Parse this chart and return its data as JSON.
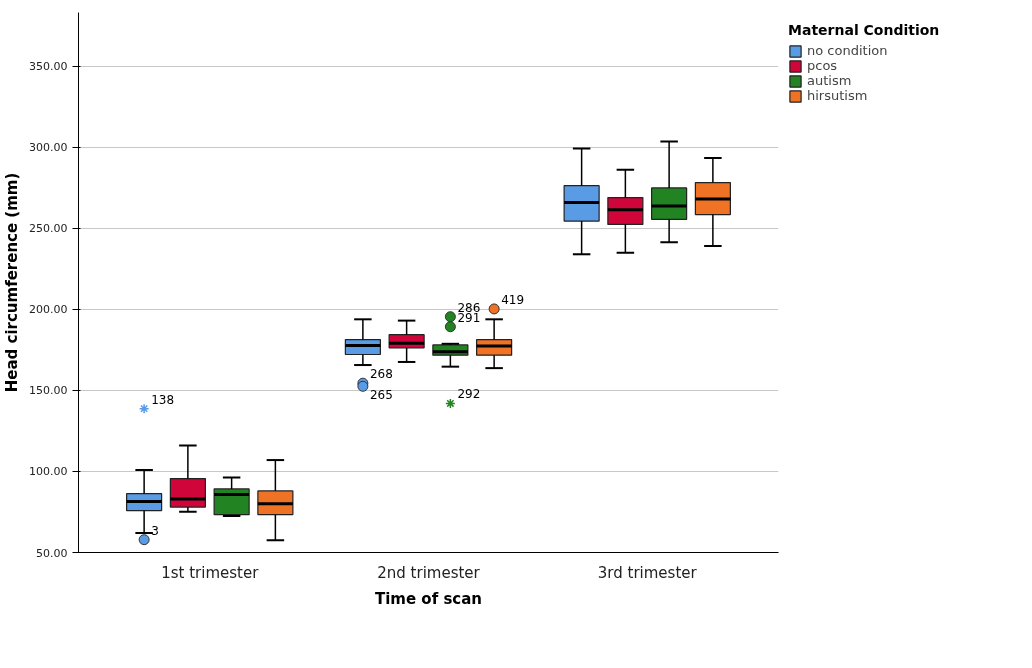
{
  "chart_data": {
    "type": "box",
    "xlabel": "Time of scan",
    "ylabel": "Head circumference (mm)",
    "legend_title": "Maternal Condition",
    "legend": "top right",
    "grid": "y",
    "categories": [
      "1st trimester",
      "2nd trimester",
      "3rd trimester"
    ],
    "ylim": [
      50,
      383
    ],
    "yticks": [
      {
        "value": 50,
        "label": "50.00"
      },
      {
        "value": 100,
        "label": "100.00"
      },
      {
        "value": 150,
        "label": "150.00"
      },
      {
        "value": 200,
        "label": "200.00"
      },
      {
        "value": 250,
        "label": "250.00"
      },
      {
        "value": 300,
        "label": "300.00"
      },
      {
        "value": 350,
        "label": "350.00"
      }
    ],
    "series": [
      {
        "name": "no condition",
        "color": "#5a9be6",
        "boxes": [
          {
            "low": 62,
            "q1": 75.8,
            "median": 81.5,
            "q3": 86.3,
            "high": 100.8,
            "outliers": [
              57.9,
              138.7
            ]
          },
          {
            "low": 165.6,
            "q1": 172.1,
            "median": 177.7,
            "q3": 181.3,
            "high": 193.8,
            "outliers": [
              154.4,
              152.5
            ]
          },
          {
            "low": 233.9,
            "q1": 254.4,
            "median": 265.8,
            "q3": 276.2,
            "high": 299.2
          }
        ]
      },
      {
        "name": "pcos",
        "color": "#d0063a",
        "boxes": [
          {
            "low": 75.2,
            "q1": 78,
            "median": 83,
            "q3": 95.6,
            "high": 116
          },
          {
            "low": 167.5,
            "q1": 176.2,
            "median": 179.1,
            "q3": 184.3,
            "high": 193
          },
          {
            "low": 234.8,
            "q1": 252.3,
            "median": 261.3,
            "q3": 268.9,
            "high": 286
          }
        ]
      },
      {
        "name": "autism",
        "color": "#228322",
        "boxes": [
          {
            "low": 72.5,
            "q1": 73.3,
            "median": 85.8,
            "q3": 89.2,
            "high": 96.2
          },
          {
            "low": 164.6,
            "q1": 171.7,
            "median": 173.8,
            "q3": 178,
            "high": 178.7,
            "outliers": [
              195.4,
              189.2,
              141.9
            ]
          },
          {
            "low": 241.3,
            "q1": 255.4,
            "median": 263.7,
            "q3": 274.8,
            "high": 303.5
          }
        ]
      },
      {
        "name": "hirsutism",
        "color": "#f07224",
        "boxes": [
          {
            "low": 57.5,
            "q1": 73.3,
            "median": 80,
            "q3": 88,
            "high": 107
          },
          {
            "low": 163.7,
            "q1": 171.7,
            "median": 177.3,
            "q3": 181.3,
            "high": 193.8,
            "outliers": [
              200.2
            ]
          },
          {
            "low": 239,
            "q1": 258.4,
            "median": 268,
            "q3": 278.1,
            "high": 293.3
          }
        ]
      }
    ],
    "annotations": [
      "3",
      "138",
      "268",
      "265",
      "286",
      "291",
      "292",
      "419"
    ]
  }
}
